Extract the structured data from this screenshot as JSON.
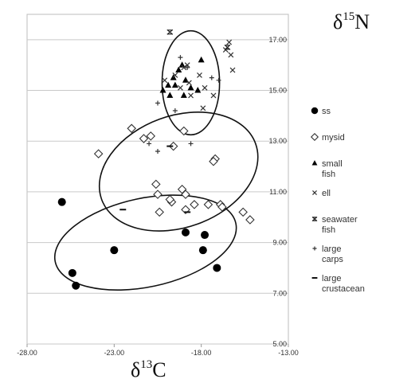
{
  "chart_data": {
    "type": "scatter",
    "title": "",
    "xlabel": {
      "base": "δ",
      "sup": "13",
      "suffix": "C"
    },
    "ylabel": {
      "base": "δ",
      "sup": "15",
      "suffix": "N"
    },
    "xlim": [
      -28,
      -13
    ],
    "ylim": [
      5,
      18
    ],
    "x_ticks": [
      {
        "value": -28,
        "label": "-28.00"
      },
      {
        "value": -23,
        "label": "-23.00"
      },
      {
        "value": -18,
        "label": "-18.00"
      },
      {
        "value": -13,
        "label": "-13.00"
      }
    ],
    "y_ticks": [
      {
        "value": 5,
        "label": "5.00"
      },
      {
        "value": 7,
        "label": "7.00"
      },
      {
        "value": 9,
        "label": "9.00"
      },
      {
        "value": 11,
        "label": "11.00"
      },
      {
        "value": 13,
        "label": "13.00"
      },
      {
        "value": 15,
        "label": "15.00"
      },
      {
        "value": 17,
        "label": "17.00"
      }
    ],
    "grid": "horizontal",
    "legend_position": "right",
    "series": [
      {
        "name": "ss",
        "marker": "filled-circle",
        "points": [
          [
            -26.0,
            10.6
          ],
          [
            -25.4,
            7.8
          ],
          [
            -25.2,
            7.3
          ],
          [
            -23.0,
            8.7
          ],
          [
            -18.9,
            9.4
          ],
          [
            -17.8,
            9.3
          ],
          [
            -17.9,
            8.7
          ],
          [
            -17.1,
            8.0
          ]
        ]
      },
      {
        "name": "mysid",
        "marker": "diamond",
        "points": [
          [
            -23.9,
            12.5
          ],
          [
            -22.0,
            13.5
          ],
          [
            -21.3,
            13.1
          ],
          [
            -20.9,
            13.2
          ],
          [
            -19.6,
            12.8
          ],
          [
            -19.0,
            13.4
          ],
          [
            -17.2,
            12.3
          ],
          [
            -17.3,
            12.2
          ],
          [
            -20.6,
            11.3
          ],
          [
            -20.5,
            10.9
          ],
          [
            -19.1,
            11.1
          ],
          [
            -18.9,
            10.9
          ],
          [
            -19.7,
            10.6
          ],
          [
            -19.8,
            10.7
          ],
          [
            -18.4,
            10.5
          ],
          [
            -17.6,
            10.5
          ],
          [
            -16.9,
            10.5
          ],
          [
            -16.8,
            10.4
          ],
          [
            -20.4,
            10.2
          ],
          [
            -18.9,
            10.3
          ],
          [
            -15.6,
            10.2
          ],
          [
            -15.2,
            9.9
          ]
        ]
      },
      {
        "name": "small fish",
        "marker": "triangle",
        "points": [
          [
            -20.2,
            15.0
          ],
          [
            -19.9,
            15.2
          ],
          [
            -19.6,
            15.5
          ],
          [
            -19.3,
            15.8
          ],
          [
            -19.5,
            15.2
          ],
          [
            -19.0,
            14.8
          ],
          [
            -18.9,
            15.4
          ],
          [
            -18.6,
            15.1
          ],
          [
            -18.2,
            15.0
          ],
          [
            -18.0,
            16.2
          ],
          [
            -19.1,
            16.0
          ],
          [
            -19.8,
            14.8
          ]
        ]
      },
      {
        "name": "ell",
        "marker": "x",
        "points": [
          [
            -19.5,
            15.6
          ],
          [
            -19.0,
            15.9
          ],
          [
            -18.8,
            16.0
          ],
          [
            -18.7,
            15.3
          ],
          [
            -18.6,
            14.8
          ],
          [
            -18.1,
            15.6
          ],
          [
            -17.8,
            15.1
          ],
          [
            -17.3,
            14.8
          ],
          [
            -17.9,
            14.3
          ],
          [
            -16.6,
            16.6
          ],
          [
            -16.4,
            16.9
          ],
          [
            -16.3,
            16.4
          ],
          [
            -16.2,
            15.8
          ],
          [
            -19.2,
            15.1
          ],
          [
            -20.1,
            15.4
          ]
        ]
      },
      {
        "name": "seawater fish",
        "marker": "asterisk",
        "points": [
          [
            -19.8,
            17.3
          ],
          [
            -16.5,
            16.7
          ]
        ]
      },
      {
        "name": "large carps",
        "marker": "plus",
        "points": [
          [
            -19.2,
            16.3
          ],
          [
            -20.5,
            14.5
          ],
          [
            -19.5,
            14.2
          ],
          [
            -18.8,
            15.9
          ],
          [
            -17.4,
            15.5
          ],
          [
            -21.0,
            12.9
          ],
          [
            -20.5,
            12.6
          ],
          [
            -18.6,
            12.9
          ],
          [
            -17.0,
            15.4
          ]
        ]
      },
      {
        "name": "large crustacean",
        "marker": "dash",
        "points": [
          [
            -19.8,
            12.8
          ],
          [
            -22.5,
            10.3
          ],
          [
            -18.8,
            10.2
          ]
        ]
      }
    ],
    "ellipses": [
      {
        "center": [
          -18.6,
          15.3
        ],
        "rx": 1.65,
        "ry": 2.05,
        "rotation_deg": 0
      },
      {
        "center": [
          -19.3,
          11.8
        ],
        "rx": 4.7,
        "ry": 2.2,
        "rotation_deg": -20
      },
      {
        "center": [
          -21.2,
          9.0
        ],
        "rx": 5.3,
        "ry": 1.75,
        "rotation_deg": -12
      }
    ]
  }
}
